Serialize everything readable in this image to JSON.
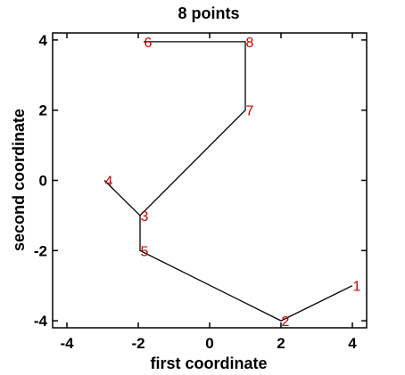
{
  "chart_data": {
    "type": "line",
    "title": "8 points",
    "xlabel": "first coordinate",
    "ylabel": "second coordinate",
    "xlim": [
      -4.4,
      4.4
    ],
    "ylim": [
      -4.2,
      4.2
    ],
    "x_ticks": [
      -4,
      -2,
      0,
      2,
      4
    ],
    "y_ticks": [
      -4,
      -2,
      0,
      2,
      4
    ],
    "x_tick_labels": [
      "-4",
      "-2",
      "0",
      "2",
      "4"
    ],
    "y_tick_labels": [
      "-4",
      "-2",
      "0",
      "2",
      "4"
    ],
    "grid": false,
    "line_color": "#000000",
    "label_color": "#cc0000",
    "path_order": [
      "4",
      "3",
      "7",
      "8",
      "6"
    ],
    "path_order_2": [
      "3",
      "5",
      "2",
      "1"
    ],
    "points": [
      {
        "label": "1",
        "x": 4.0,
        "y": -3.0
      },
      {
        "label": "2",
        "x": 2.0,
        "y": -4.0
      },
      {
        "label": "3",
        "x": -1.95,
        "y": -1.0
      },
      {
        "label": "4",
        "x": -2.95,
        "y": 0.0
      },
      {
        "label": "5",
        "x": -1.95,
        "y": -2.0
      },
      {
        "label": "6",
        "x": -1.85,
        "y": 3.95
      },
      {
        "label": "7",
        "x": 1.0,
        "y": 2.0
      },
      {
        "label": "8",
        "x": 1.0,
        "y": 3.95
      }
    ]
  }
}
